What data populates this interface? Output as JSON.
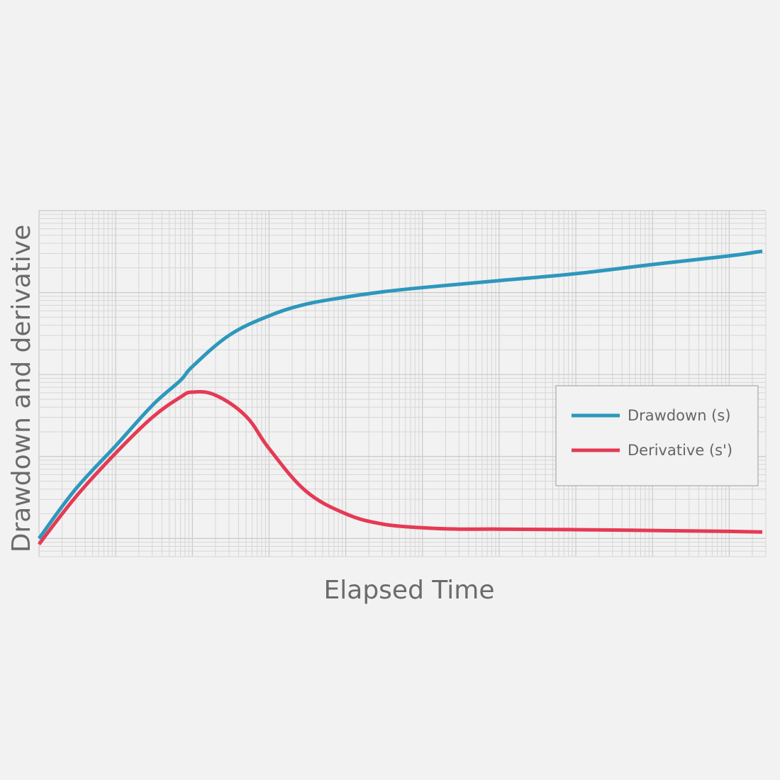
{
  "chart_data": {
    "type": "line",
    "title": "",
    "xlabel": "Elapsed Time",
    "ylabel": "Drawdown and derivative",
    "x_scale": "log",
    "y_scale": "log",
    "xlim": [
      1,
      3000000000
    ],
    "ylim": [
      0.06,
      1000
    ],
    "x_tick_labels_shown": false,
    "y_tick_labels_shown": false,
    "grid": true,
    "legend_position": "right",
    "series": [
      {
        "name": "Drawdown (s)",
        "color": "#2e97bd",
        "x": [
          1,
          3,
          10,
          30,
          70,
          100,
          300,
          1000,
          3000,
          10000,
          30000,
          100000,
          1000000,
          10000000,
          100000000,
          1000000000,
          2700000000
        ],
        "y": [
          0.1,
          0.4,
          1.35,
          4.2,
          8.5,
          12.5,
          30,
          52,
          72,
          88,
          102,
          115,
          140,
          170,
          220,
          280,
          320
        ]
      },
      {
        "name": "Derivative (s')",
        "color": "#e53a54",
        "x": [
          1,
          3,
          10,
          30,
          70,
          100,
          200,
          500,
          1000,
          3000,
          10000,
          30000,
          100000,
          300000,
          1000000,
          10000000,
          100000000,
          1000000000,
          2700000000
        ],
        "y": [
          0.085,
          0.32,
          1.1,
          3.0,
          5.3,
          6.1,
          5.6,
          3.1,
          1.25,
          0.38,
          0.2,
          0.15,
          0.135,
          0.13,
          0.13,
          0.128,
          0.125,
          0.122,
          0.12
        ]
      }
    ]
  }
}
